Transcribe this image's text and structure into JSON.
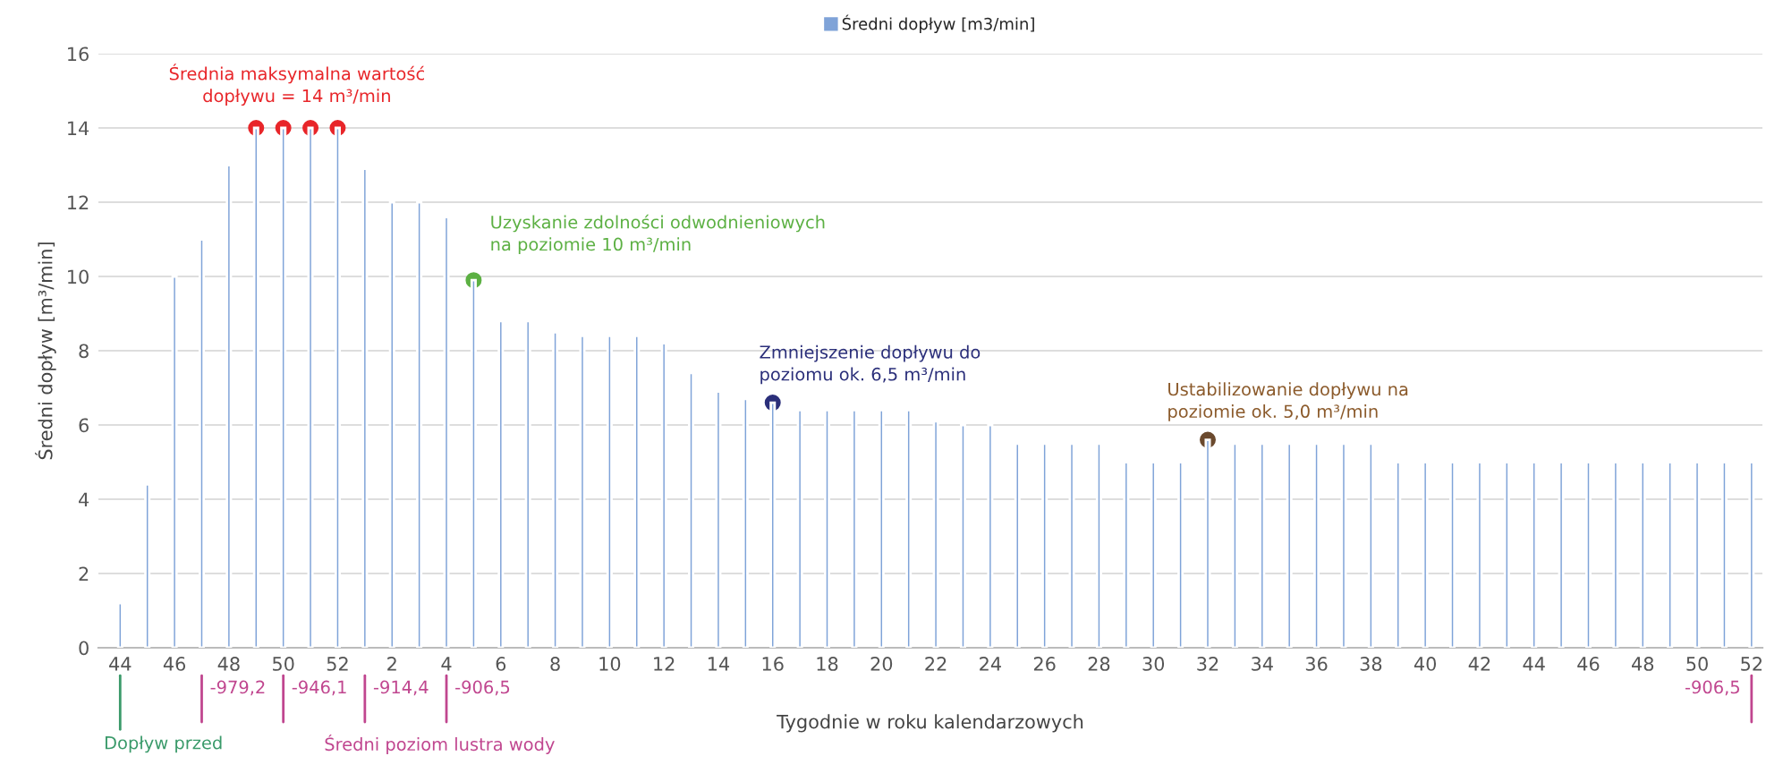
{
  "chart_data": {
    "type": "bar",
    "xlabel": "Tygodnie w roku kalendarzowych",
    "ylabel": "Średni dopływ [m³/min]",
    "categories": [
      "44",
      null,
      "46",
      null,
      "48",
      null,
      "50",
      null,
      "52",
      null,
      "2",
      null,
      "4",
      null,
      "6",
      null,
      "8",
      null,
      "10",
      null,
      "12",
      null,
      "14",
      null,
      "16",
      null,
      "18",
      null,
      "20",
      null,
      "22",
      null,
      "24",
      null,
      "26",
      null,
      "28",
      null,
      "30",
      null,
      "32",
      null,
      "34",
      null,
      "36",
      null,
      "38",
      null,
      "40",
      null,
      "42",
      null,
      "44",
      null,
      "46",
      null,
      "48",
      null,
      "50",
      null,
      "52"
    ],
    "series": [
      {
        "name": "Średni dopływ [m3/min]",
        "color": "#7fa3d8",
        "values": [
          1.2,
          4.4,
          10,
          11,
          13,
          14,
          14,
          14,
          14,
          12.9,
          12,
          12,
          11.6,
          9.9,
          8.8,
          8.8,
          8.5,
          8.4,
          8.4,
          8.4,
          8.2,
          7.4,
          6.9,
          6.7,
          6.6,
          6.4,
          6.4,
          6.4,
          6.4,
          6.4,
          6.1,
          6,
          6,
          5.5,
          5.5,
          5.5,
          5.5,
          5,
          5,
          5,
          5.6,
          5.5,
          5.5,
          5.5,
          5.5,
          5.5,
          5.5,
          5,
          5,
          5,
          5,
          5,
          5,
          5,
          5,
          5,
          5,
          5,
          5,
          5,
          5
        ]
      },
      {
        "type": "scatter",
        "color": "#e8262a",
        "values": [
          null,
          null,
          null,
          null,
          null,
          14,
          14,
          14,
          14,
          null,
          null,
          null,
          null,
          null,
          null,
          null,
          null,
          null,
          null,
          null,
          null,
          null,
          null,
          null,
          null,
          null,
          null,
          null,
          null,
          null,
          null,
          null,
          null,
          null,
          null,
          null,
          null,
          null,
          null,
          null,
          null,
          null,
          null,
          null,
          null,
          null,
          null,
          null,
          null,
          null,
          null,
          null,
          null,
          null,
          null,
          null,
          null,
          null,
          null,
          null,
          null
        ]
      },
      {
        "type": "scatter",
        "color": "#5cb043",
        "values": [
          null,
          null,
          null,
          null,
          null,
          null,
          null,
          null,
          null,
          null,
          null,
          null,
          null,
          9.9,
          null,
          null,
          null,
          null,
          null,
          null,
          null,
          null,
          null,
          null,
          null,
          null,
          null,
          null,
          null,
          null,
          null,
          null,
          null,
          null,
          null,
          null,
          null,
          null,
          null,
          null,
          null,
          null,
          null,
          null,
          null,
          null,
          null,
          null,
          null,
          null,
          null,
          null,
          null,
          null,
          null,
          null,
          null,
          null,
          null,
          null,
          null
        ]
      },
      {
        "type": "scatter",
        "color": "#2b2f7a",
        "values": [
          null,
          null,
          null,
          null,
          null,
          null,
          null,
          null,
          null,
          null,
          null,
          null,
          null,
          null,
          null,
          null,
          null,
          null,
          null,
          null,
          null,
          null,
          null,
          null,
          6.6,
          null,
          null,
          null,
          null,
          null,
          null,
          null,
          null,
          null,
          null,
          null,
          null,
          null,
          null,
          null,
          null,
          null,
          null,
          null,
          null,
          null,
          null,
          null,
          null,
          null,
          null,
          null,
          null,
          null,
          null,
          null,
          null,
          null,
          null,
          null,
          null
        ]
      },
      {
        "type": "scatter",
        "color": "#6b4a2e",
        "values": [
          null,
          null,
          null,
          null,
          null,
          null,
          null,
          null,
          null,
          null,
          null,
          null,
          null,
          null,
          null,
          null,
          null,
          null,
          null,
          null,
          null,
          null,
          null,
          null,
          null,
          null,
          null,
          null,
          null,
          null,
          null,
          null,
          null,
          null,
          null,
          null,
          null,
          null,
          null,
          null,
          5.6,
          null,
          null,
          null,
          null,
          null,
          null,
          null,
          null,
          null,
          null,
          null,
          null,
          null,
          null,
          null,
          null,
          null,
          null,
          null,
          null
        ]
      }
    ],
    "ylim": [
      0,
      16
    ],
    "yticks": [
      0,
      2,
      4,
      6,
      8,
      10,
      12,
      14,
      16
    ],
    "grid": "y",
    "legend": "top",
    "marker": "circle",
    "annotations": [
      "Średnia maksymalna wartość\ndopływu = 14 m³/min",
      "Uzyskanie zdolności odwodnieniowych\nna poziomie 10 m³/min",
      "Zmniejszenie dopływu do\npoziomu ok. 6,5 m³/min",
      "Ustabilizowanie dopływu na\npoziomie ok. 5,0 m³/min",
      "-979,2",
      "-946,1",
      "-914,4",
      "-906,5",
      "-906,5",
      "Dopływ przed",
      "Średni poziom lustra wody"
    ]
  }
}
